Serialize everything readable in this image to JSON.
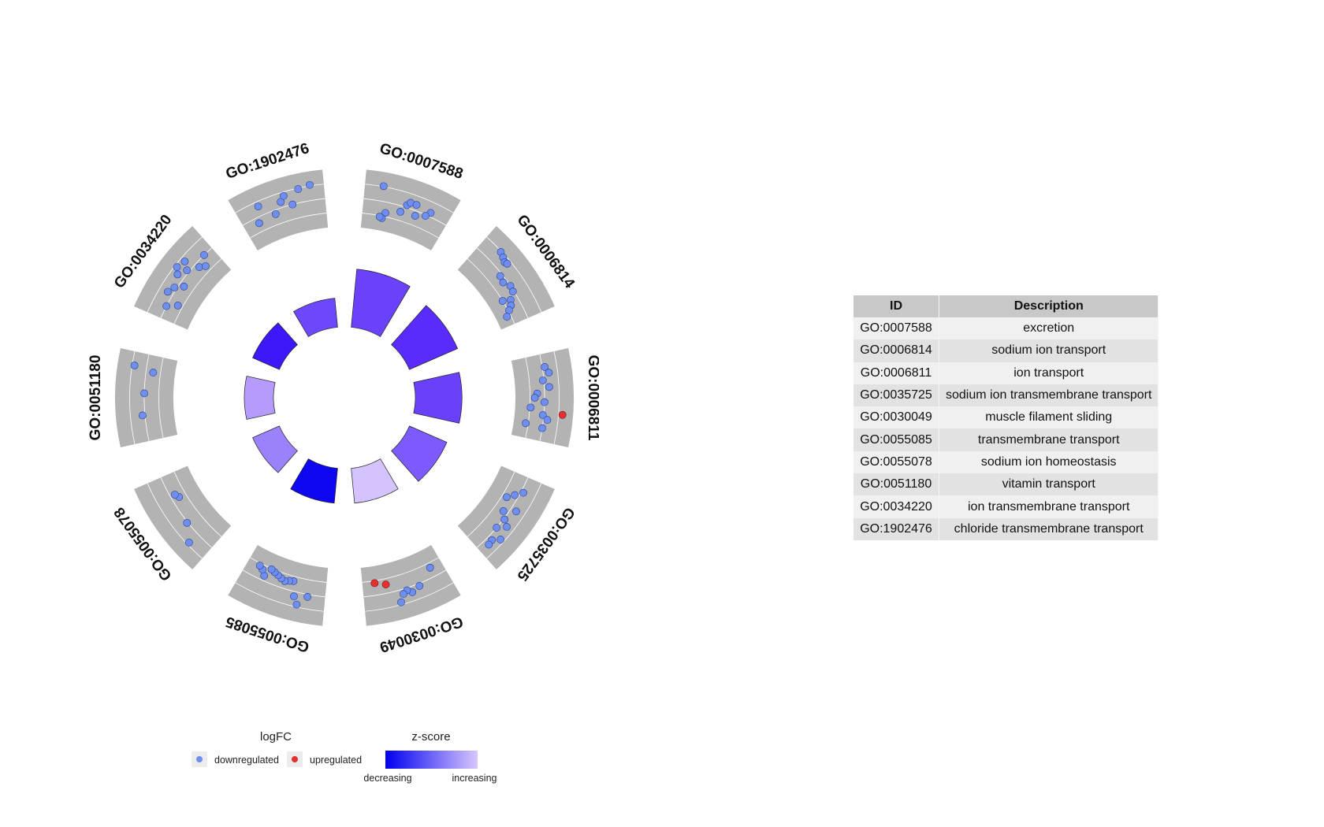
{
  "chart_data": {
    "type": "circular-go-plot",
    "terms": [
      {
        "id": "GO:0007588",
        "description": "excretion",
        "zscore_color": "#6a42fb",
        "count": 10,
        "points": [
          [
            0.2,
            0.81
          ],
          [
            0.5,
            0.55
          ],
          [
            0.53,
            0.62
          ],
          [
            0.6,
            0.62
          ],
          [
            0.78,
            0.58
          ],
          [
            0.74,
            0.48
          ],
          [
            0.63,
            0.4
          ],
          [
            0.45,
            0.38
          ],
          [
            0.28,
            0.28
          ],
          [
            0.25,
            0.16
          ],
          [
            0.22,
            0.18
          ]
        ],
        "up": []
      },
      {
        "id": "GO:0006814",
        "description": "sodium ion transport",
        "zscore_color": "#5a2cfc",
        "count": 9,
        "points": [
          [
            0.22,
            0.78
          ],
          [
            0.28,
            0.74
          ],
          [
            0.33,
            0.7
          ],
          [
            0.36,
            0.72
          ],
          [
            0.42,
            0.45
          ],
          [
            0.5,
            0.42
          ],
          [
            0.58,
            0.5
          ],
          [
            0.65,
            0.48
          ],
          [
            0.72,
            0.35
          ],
          [
            0.78,
            0.3
          ],
          [
            0.82,
            0.22
          ],
          [
            0.68,
            0.2
          ],
          [
            0.88,
            0.12
          ]
        ],
        "up": []
      },
      {
        "id": "GO:0006811",
        "description": "ion transport",
        "zscore_color": "#6941fb",
        "count": 8,
        "points": [
          [
            0.15,
            0.55
          ],
          [
            0.22,
            0.62
          ],
          [
            0.3,
            0.48
          ],
          [
            0.38,
            0.6
          ],
          [
            0.45,
            0.35
          ],
          [
            0.5,
            0.3
          ],
          [
            0.55,
            0.5
          ],
          [
            0.62,
            0.22
          ],
          [
            0.7,
            0.48
          ],
          [
            0.75,
            0.58
          ],
          [
            0.82,
            0.15
          ],
          [
            0.85,
            0.5
          ]
        ],
        "up": [
          [
            0.68,
            0.88
          ]
        ]
      },
      {
        "id": "GO:0035725",
        "description": "sodium ion transmembrane transport",
        "zscore_color": "#7d5afb",
        "count": 7,
        "points": [
          [
            0.18,
            0.55
          ],
          [
            0.25,
            0.42
          ],
          [
            0.32,
            0.3
          ],
          [
            0.4,
            0.62
          ],
          [
            0.48,
            0.4
          ],
          [
            0.55,
            0.52
          ],
          [
            0.6,
            0.65
          ],
          [
            0.68,
            0.5
          ],
          [
            0.75,
            0.72
          ],
          [
            0.82,
            0.6
          ],
          [
            0.88,
            0.62
          ]
        ],
        "up": []
      },
      {
        "id": "GO:0030049",
        "description": "muscle filament sliding",
        "zscore_color": "#d5c3fd",
        "count": 6,
        "points": [
          [
            0.15,
            0.3
          ],
          [
            0.35,
            0.55
          ],
          [
            0.45,
            0.62
          ],
          [
            0.5,
            0.55
          ],
          [
            0.55,
            0.6
          ],
          [
            0.6,
            0.75
          ]
        ],
        "up": [
          [
            0.72,
            0.32
          ],
          [
            0.85,
            0.25
          ]
        ]
      },
      {
        "id": "GO:0055085",
        "description": "transmembrane transport",
        "zscore_color": "#0f06f0",
        "count": 6,
        "points": [
          [
            0.2,
            0.55
          ],
          [
            0.3,
            0.75
          ],
          [
            0.35,
            0.6
          ],
          [
            0.4,
            0.3
          ],
          [
            0.45,
            0.32
          ],
          [
            0.5,
            0.35
          ],
          [
            0.55,
            0.32
          ],
          [
            0.6,
            0.28
          ],
          [
            0.65,
            0.25
          ],
          [
            0.7,
            0.22
          ],
          [
            0.75,
            0.4
          ],
          [
            0.8,
            0.3
          ],
          [
            0.85,
            0.25
          ]
        ],
        "up": []
      },
      {
        "id": "GO:0055078",
        "description": "sodium ion homeostasis",
        "zscore_color": "#9b81fb",
        "count": 5,
        "points": [
          [
            0.22,
            0.75
          ],
          [
            0.4,
            0.52
          ],
          [
            0.7,
            0.35
          ],
          [
            0.75,
            0.4
          ]
        ],
        "up": []
      },
      {
        "id": "GO:0051180",
        "description": "vitamin transport",
        "zscore_color": "#b59cfc",
        "count": 5,
        "points": [
          [
            0.3,
            0.55
          ],
          [
            0.55,
            0.5
          ],
          [
            0.8,
            0.35
          ],
          [
            0.85,
            0.75
          ]
        ],
        "up": []
      },
      {
        "id": "GO:0034220",
        "description": "ion transmembrane transport",
        "zscore_color": "#3e18f8",
        "count": 5,
        "points": [
          [
            0.15,
            0.5
          ],
          [
            0.22,
            0.3
          ],
          [
            0.3,
            0.62
          ],
          [
            0.38,
            0.55
          ],
          [
            0.45,
            0.4
          ],
          [
            0.52,
            0.65
          ],
          [
            0.58,
            0.75
          ],
          [
            0.62,
            0.55
          ],
          [
            0.68,
            0.7
          ],
          [
            0.74,
            0.4
          ],
          [
            0.8,
            0.32
          ],
          [
            0.88,
            0.5
          ]
        ],
        "up": []
      },
      {
        "id": "GO:1902476",
        "description": "chloride transmembrane transport",
        "zscore_color": "#6d47fb",
        "count": 5,
        "points": [
          [
            0.18,
            0.38
          ],
          [
            0.25,
            0.7
          ],
          [
            0.4,
            0.42
          ],
          [
            0.5,
            0.62
          ],
          [
            0.55,
            0.72
          ],
          [
            0.62,
            0.5
          ],
          [
            0.72,
            0.78
          ],
          [
            0.85,
            0.82
          ]
        ],
        "up": []
      }
    ],
    "colors": {
      "downregulated": "#6f8ff0",
      "upregulated": "#e33030",
      "segment_bg": "#b3b3b3"
    },
    "legend": {
      "logfc_title": "logFC",
      "down_label": "downregulated",
      "up_label": "upregulated",
      "z_title": "z-score",
      "z_low": "decreasing",
      "z_high": "increasing",
      "z_colors": [
        "#0000f0",
        "#d8c6fd"
      ]
    }
  },
  "table": {
    "headers": {
      "id": "ID",
      "description": "Description"
    }
  }
}
